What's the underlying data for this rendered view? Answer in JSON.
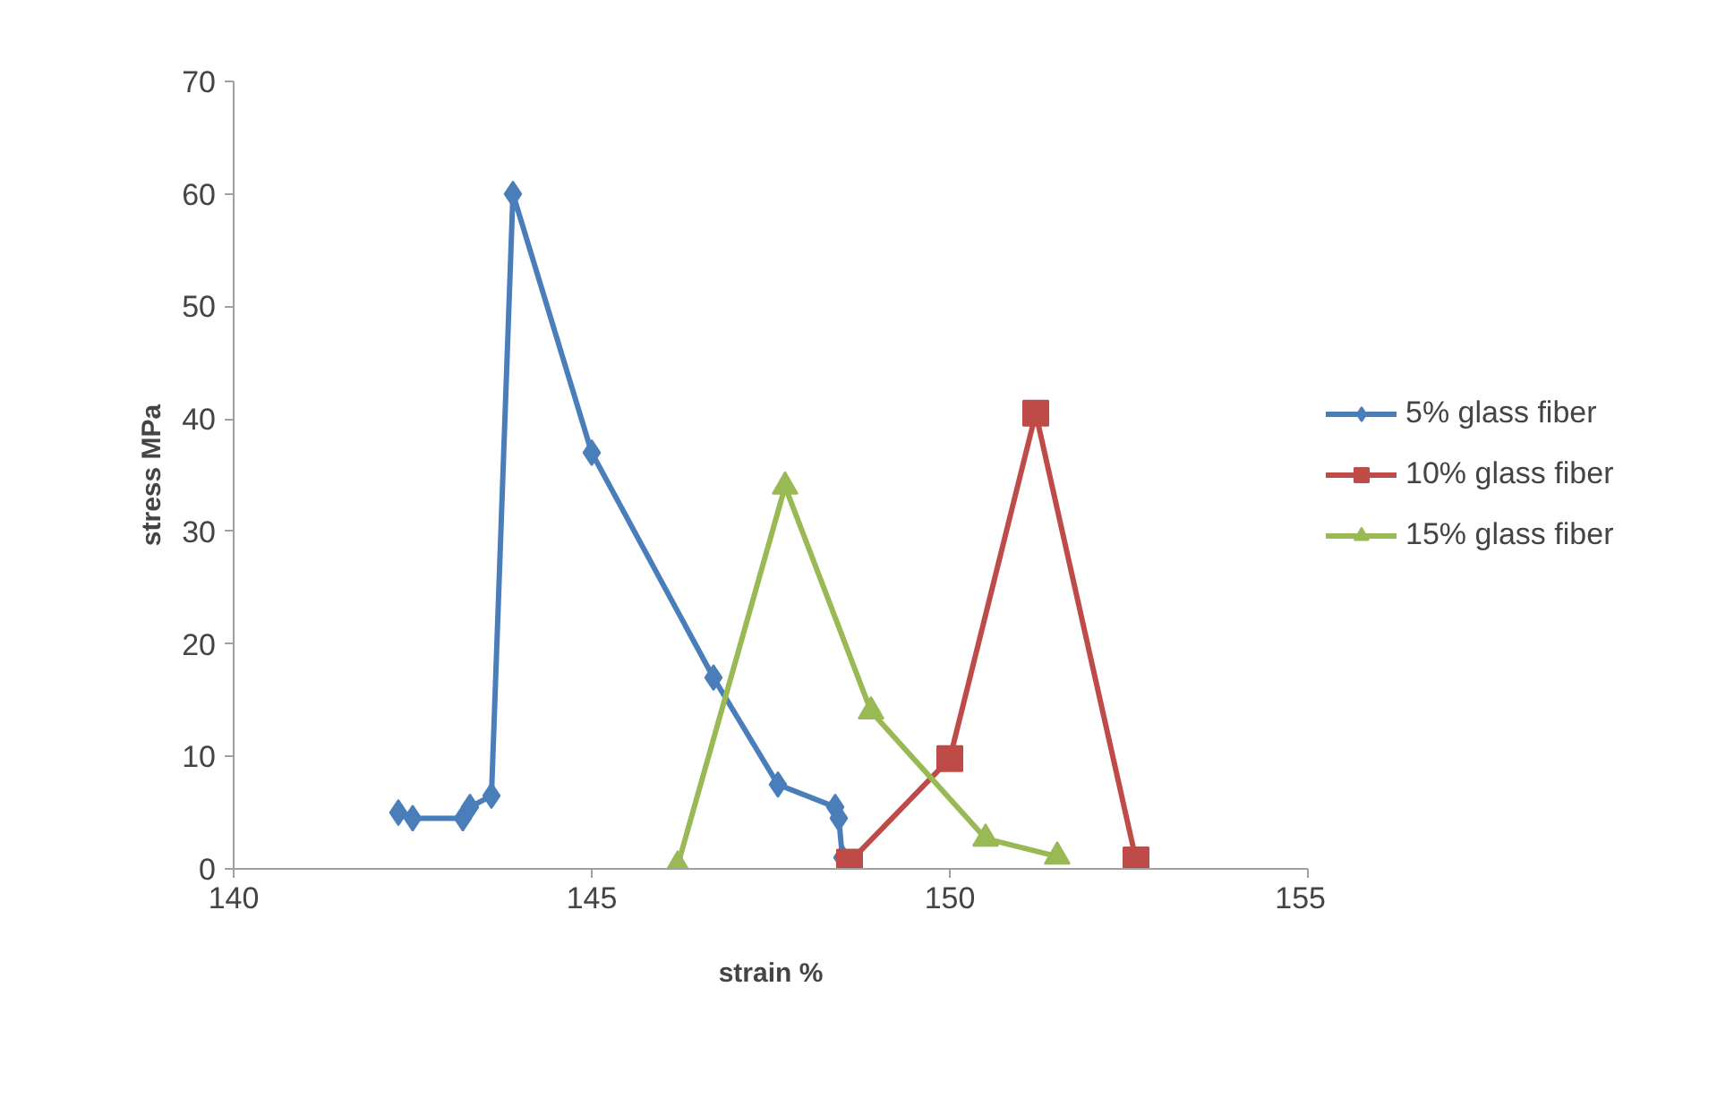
{
  "chart_data": {
    "type": "line",
    "xlabel": "strain %",
    "ylabel": "stress MPa",
    "xlim": [
      140,
      155
    ],
    "xticks": [
      140,
      145,
      150,
      155
    ],
    "ylim": [
      0,
      70
    ],
    "yticks": [
      0,
      10,
      20,
      30,
      40,
      50,
      60,
      70
    ],
    "grid": false,
    "legend": "right",
    "series": [
      {
        "name": "5% glass fiber",
        "color": "#4a7ebb",
        "marker": "diamond",
        "x": [
          142.3,
          142.5,
          143.2,
          143.3,
          143.6,
          143.9,
          145.0,
          146.7,
          147.6,
          148.4,
          148.45,
          148.5
        ],
        "values": [
          5,
          4.5,
          4.5,
          5.5,
          6.5,
          60,
          37,
          17,
          7.5,
          5.5,
          4.5,
          1
        ]
      },
      {
        "name": "10% glass fiber",
        "color": "#be4b48",
        "marker": "square",
        "x": [
          148.6,
          150.0,
          151.2,
          152.6
        ],
        "values": [
          0.6,
          9.8,
          40.5,
          0.8
        ]
      },
      {
        "name": "15% glass fiber",
        "color": "#98b954",
        "marker": "triangle",
        "x": [
          146.2,
          147.7,
          148.9,
          150.5,
          151.5
        ],
        "values": [
          0.3,
          34,
          14,
          2.7,
          1.1
        ]
      }
    ]
  }
}
